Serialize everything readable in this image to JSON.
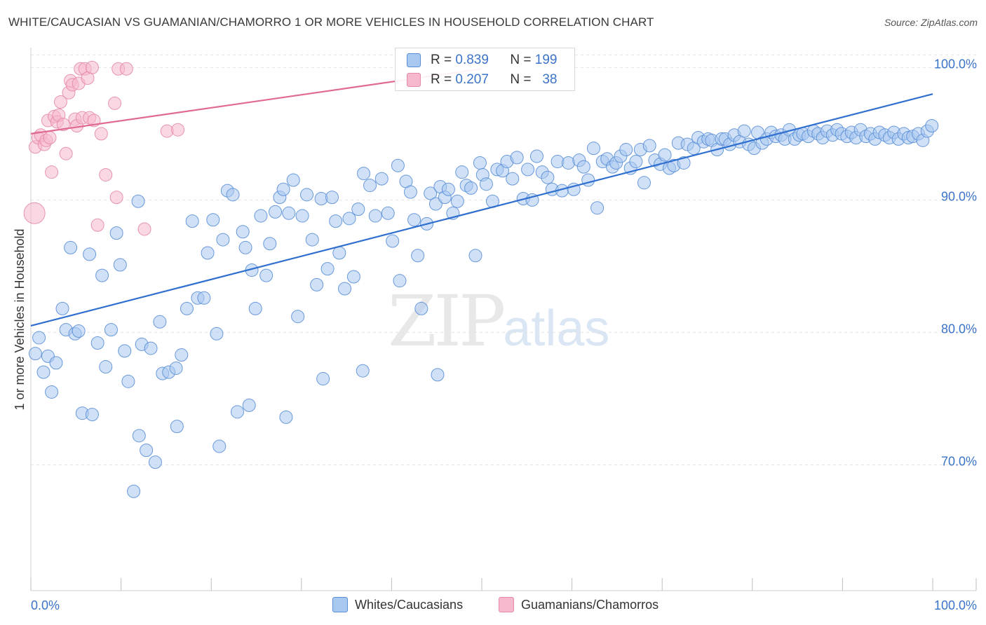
{
  "header": {
    "title": "WHITE/CAUCASIAN VS GUAMANIAN/CHAMORRO 1 OR MORE VEHICLES IN HOUSEHOLD CORRELATION CHART",
    "source": "Source: ZipAtlas.com"
  },
  "watermark": {
    "zip": "ZIP",
    "atlas": "atlas"
  },
  "stats": {
    "r_label": "R =",
    "n_label": "N =",
    "series1": {
      "r": "0.839",
      "n": "199"
    },
    "series2": {
      "r": "0.207",
      "n": "38"
    }
  },
  "legend": {
    "series1": "Whites/Caucasians",
    "series2": "Guamanians/Chamorros"
  },
  "colors": {
    "blue_fill": "#a9c8f0",
    "blue_stroke": "#5b8fd6",
    "blue_line": "#2f6fcf",
    "pink_fill": "#f6b8cc",
    "pink_stroke": "#e48aa8",
    "pink_line": "#e06a90",
    "tick_label": "#3b73c8",
    "grid": "#e2e2e2"
  },
  "chart_data": {
    "type": "scatter",
    "title": "WHITE/CAUCASIAN VS GUAMANIAN/CHAMORRO 1 OR MORE VEHICLES IN HOUSEHOLD CORRELATION CHART",
    "xlabel": "",
    "ylabel": "1 or more Vehicles in Household",
    "xlim": [
      0,
      100
    ],
    "ylim": [
      60.5,
      101.5
    ],
    "x_tick_labels": [
      "0.0%",
      "100.0%"
    ],
    "y_ticks": [
      {
        "value": 70,
        "label": "70.0%"
      },
      {
        "value": 80,
        "label": "80.0%"
      },
      {
        "value": 90,
        "label": "90.0%"
      },
      {
        "value": 100,
        "label": "100.0%"
      }
    ],
    "series": [
      {
        "name": "Whites/Caucasians",
        "r": 0.839,
        "n": 199,
        "trend": {
          "x": [
            0,
            100
          ],
          "y": [
            80.5,
            98.0
          ]
        },
        "points": [
          [
            0.5,
            78.4
          ],
          [
            0.9,
            79.6
          ],
          [
            1.4,
            77.0
          ],
          [
            1.9,
            78.2
          ],
          [
            2.3,
            75.5
          ],
          [
            2.8,
            77.7
          ],
          [
            3.5,
            81.8
          ],
          [
            3.9,
            80.2
          ],
          [
            4.4,
            86.4
          ],
          [
            4.9,
            79.9
          ],
          [
            5.3,
            80.1
          ],
          [
            5.7,
            73.9
          ],
          [
            6.5,
            85.9
          ],
          [
            6.8,
            73.8
          ],
          [
            7.4,
            79.2
          ],
          [
            7.9,
            84.3
          ],
          [
            8.3,
            77.4
          ],
          [
            8.9,
            80.2
          ],
          [
            9.5,
            87.5
          ],
          [
            9.9,
            85.1
          ],
          [
            10.4,
            78.6
          ],
          [
            10.8,
            76.3
          ],
          [
            11.4,
            68.0
          ],
          [
            11.9,
            89.9
          ],
          [
            12.3,
            79.1
          ],
          [
            12.8,
            71.1
          ],
          [
            13.3,
            78.8
          ],
          [
            13.8,
            70.2
          ],
          [
            14.3,
            80.8
          ],
          [
            14.6,
            76.9
          ],
          [
            15.3,
            77.0
          ],
          [
            16.1,
            77.3
          ],
          [
            16.7,
            78.3
          ],
          [
            17.3,
            81.8
          ],
          [
            17.9,
            88.4
          ],
          [
            18.5,
            82.6
          ],
          [
            19.2,
            82.6
          ],
          [
            19.6,
            86.0
          ],
          [
            20.2,
            88.5
          ],
          [
            20.6,
            79.9
          ],
          [
            21.3,
            87.0
          ],
          [
            21.8,
            90.7
          ],
          [
            22.4,
            90.4
          ],
          [
            22.9,
            74.0
          ],
          [
            23.5,
            87.6
          ],
          [
            23.8,
            86.4
          ],
          [
            24.5,
            84.7
          ],
          [
            24.9,
            81.8
          ],
          [
            25.5,
            88.8
          ],
          [
            26.1,
            84.3
          ],
          [
            26.5,
            86.7
          ],
          [
            27.1,
            89.1
          ],
          [
            27.6,
            90.2
          ],
          [
            28.0,
            90.8
          ],
          [
            28.6,
            89.0
          ],
          [
            29.1,
            91.5
          ],
          [
            29.6,
            81.2
          ],
          [
            30.1,
            88.8
          ],
          [
            30.6,
            90.4
          ],
          [
            31.2,
            87.0
          ],
          [
            31.7,
            83.6
          ],
          [
            32.2,
            90.1
          ],
          [
            32.9,
            84.8
          ],
          [
            33.4,
            90.2
          ],
          [
            33.8,
            88.4
          ],
          [
            34.2,
            86.0
          ],
          [
            34.8,
            83.3
          ],
          [
            35.3,
            88.6
          ],
          [
            35.8,
            84.2
          ],
          [
            36.3,
            89.3
          ],
          [
            36.9,
            92.0
          ],
          [
            37.6,
            91.1
          ],
          [
            38.2,
            88.8
          ],
          [
            38.9,
            91.6
          ],
          [
            39.6,
            89.0
          ],
          [
            40.1,
            86.9
          ],
          [
            40.7,
            92.6
          ],
          [
            40.9,
            83.9
          ],
          [
            41.6,
            91.4
          ],
          [
            42.1,
            90.6
          ],
          [
            42.5,
            88.5
          ],
          [
            42.9,
            85.8
          ],
          [
            43.3,
            81.8
          ],
          [
            43.9,
            88.2
          ],
          [
            44.3,
            90.5
          ],
          [
            44.9,
            89.7
          ],
          [
            45.4,
            91.0
          ],
          [
            45.9,
            90.2
          ],
          [
            46.3,
            90.8
          ],
          [
            46.8,
            89.0
          ],
          [
            47.3,
            89.9
          ],
          [
            47.8,
            92.1
          ],
          [
            48.3,
            91.1
          ],
          [
            48.8,
            90.9
          ],
          [
            49.3,
            85.8
          ],
          [
            49.8,
            92.8
          ],
          [
            50.1,
            91.9
          ],
          [
            50.5,
            91.2
          ],
          [
            51.2,
            89.9
          ],
          [
            51.7,
            92.3
          ],
          [
            52.3,
            92.2
          ],
          [
            52.8,
            92.9
          ],
          [
            53.4,
            91.6
          ],
          [
            53.9,
            93.2
          ],
          [
            54.6,
            90.1
          ],
          [
            55.1,
            92.3
          ],
          [
            55.6,
            90.0
          ],
          [
            56.1,
            93.3
          ],
          [
            56.7,
            92.1
          ],
          [
            57.3,
            91.7
          ],
          [
            57.8,
            90.8
          ],
          [
            58.4,
            92.9
          ],
          [
            58.9,
            90.7
          ],
          [
            59.6,
            92.8
          ],
          [
            60.2,
            90.8
          ],
          [
            60.8,
            93.0
          ],
          [
            61.3,
            92.5
          ],
          [
            61.8,
            91.5
          ],
          [
            62.4,
            93.9
          ],
          [
            62.8,
            89.4
          ],
          [
            63.4,
            92.9
          ],
          [
            63.9,
            93.1
          ],
          [
            64.5,
            92.5
          ],
          [
            64.9,
            92.8
          ],
          [
            65.4,
            93.3
          ],
          [
            66.0,
            93.8
          ],
          [
            66.5,
            92.4
          ],
          [
            67.1,
            92.9
          ],
          [
            67.6,
            93.8
          ],
          [
            68.0,
            91.3
          ],
          [
            68.6,
            94.1
          ],
          [
            69.2,
            93.0
          ],
          [
            69.8,
            92.7
          ],
          [
            70.3,
            93.4
          ],
          [
            70.8,
            92.4
          ],
          [
            71.3,
            92.6
          ],
          [
            71.8,
            94.3
          ],
          [
            72.4,
            92.8
          ],
          [
            72.8,
            94.2
          ],
          [
            73.5,
            93.9
          ],
          [
            74.0,
            94.7
          ],
          [
            74.6,
            94.4
          ],
          [
            75.1,
            94.6
          ],
          [
            75.5,
            94.5
          ],
          [
            76.1,
            93.8
          ],
          [
            76.6,
            94.6
          ],
          [
            77.0,
            94.6
          ],
          [
            77.5,
            94.2
          ],
          [
            78.0,
            94.9
          ],
          [
            78.6,
            94.4
          ],
          [
            79.1,
            95.2
          ],
          [
            79.6,
            94.2
          ],
          [
            80.2,
            93.9
          ],
          [
            80.6,
            95.1
          ],
          [
            81.1,
            94.3
          ],
          [
            81.6,
            94.6
          ],
          [
            82.1,
            95.1
          ],
          [
            82.6,
            94.8
          ],
          [
            83.2,
            94.9
          ],
          [
            83.6,
            94.6
          ],
          [
            84.1,
            95.3
          ],
          [
            84.7,
            94.6
          ],
          [
            85.2,
            94.9
          ],
          [
            85.6,
            95.0
          ],
          [
            86.2,
            94.8
          ],
          [
            86.8,
            95.2
          ],
          [
            87.3,
            95.0
          ],
          [
            87.8,
            94.7
          ],
          [
            88.3,
            95.2
          ],
          [
            88.9,
            94.9
          ],
          [
            89.4,
            95.3
          ],
          [
            89.9,
            95.0
          ],
          [
            90.5,
            94.8
          ],
          [
            91.0,
            95.1
          ],
          [
            91.5,
            94.7
          ],
          [
            92.0,
            95.3
          ],
          [
            92.6,
            94.8
          ],
          [
            93.1,
            95.0
          ],
          [
            93.6,
            94.6
          ],
          [
            94.1,
            95.1
          ],
          [
            94.7,
            94.9
          ],
          [
            95.2,
            94.7
          ],
          [
            95.7,
            95.1
          ],
          [
            96.2,
            94.6
          ],
          [
            96.8,
            95.0
          ],
          [
            97.3,
            94.7
          ],
          [
            97.8,
            94.8
          ],
          [
            98.4,
            95.0
          ],
          [
            98.9,
            94.5
          ],
          [
            99.4,
            95.2
          ],
          [
            99.9,
            95.6
          ],
          [
            12.0,
            72.2
          ],
          [
            16.2,
            72.9
          ],
          [
            20.9,
            71.4
          ],
          [
            24.2,
            74.5
          ],
          [
            28.3,
            73.6
          ],
          [
            32.4,
            76.5
          ],
          [
            36.8,
            77.1
          ],
          [
            45.1,
            76.8
          ]
        ]
      },
      {
        "name": "Guamanians/Chamorros",
        "r": 0.207,
        "n": 38,
        "trend": {
          "x": [
            0,
            50
          ],
          "y": [
            95.0,
            99.9
          ]
        },
        "points": [
          [
            0.4,
            89.0
          ],
          [
            0.5,
            94.0
          ],
          [
            0.8,
            94.7
          ],
          [
            1.1,
            94.9
          ],
          [
            1.5,
            94.2
          ],
          [
            1.7,
            94.5
          ],
          [
            1.9,
            96.0
          ],
          [
            2.1,
            94.7
          ],
          [
            2.3,
            92.1
          ],
          [
            2.6,
            96.3
          ],
          [
            2.9,
            95.9
          ],
          [
            3.1,
            96.4
          ],
          [
            3.3,
            97.4
          ],
          [
            3.6,
            95.7
          ],
          [
            3.9,
            93.5
          ],
          [
            4.2,
            98.1
          ],
          [
            4.4,
            99.0
          ],
          [
            4.6,
            98.7
          ],
          [
            4.9,
            96.1
          ],
          [
            5.1,
            95.6
          ],
          [
            5.3,
            98.8
          ],
          [
            5.5,
            99.9
          ],
          [
            5.7,
            96.2
          ],
          [
            6.0,
            99.9
          ],
          [
            6.3,
            99.2
          ],
          [
            6.5,
            96.2
          ],
          [
            6.8,
            100.0
          ],
          [
            7.0,
            96.0
          ],
          [
            7.4,
            88.1
          ],
          [
            7.8,
            95.0
          ],
          [
            8.3,
            91.9
          ],
          [
            9.3,
            97.3
          ],
          [
            9.5,
            90.2
          ],
          [
            9.7,
            99.9
          ],
          [
            10.6,
            99.9
          ],
          [
            12.6,
            87.8
          ],
          [
            15.1,
            95.2
          ],
          [
            16.3,
            95.3
          ]
        ]
      }
    ]
  }
}
